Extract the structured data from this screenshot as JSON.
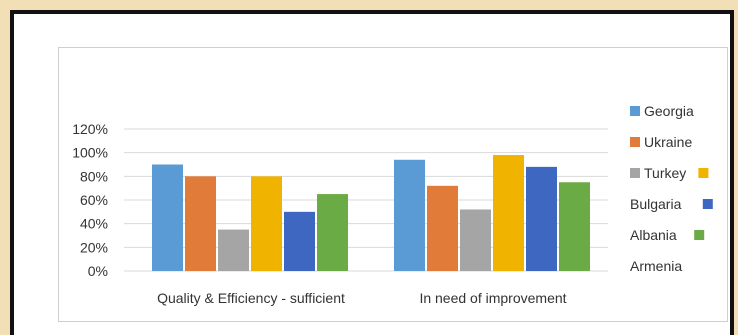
{
  "colors": {
    "background": "#f3dfb6",
    "frame": "#111111",
    "grid": "#d9d9d9"
  },
  "chart_data": {
    "type": "bar",
    "title": "",
    "xlabel": "",
    "ylabel": "",
    "categories": [
      "Quality & Efficiency - sufficient",
      "In need of improvement"
    ],
    "ylim": [
      0,
      1.2
    ],
    "yticks": [
      "0%",
      "20%",
      "40%",
      "60%",
      "80%",
      "100%",
      "120%"
    ],
    "grid": true,
    "legend_position": "right",
    "series": [
      {
        "name": "Georgia",
        "color": "#5b9bd5",
        "values": [
          0.9,
          0.94
        ]
      },
      {
        "name": "Ukraine",
        "color": "#e07b39",
        "values": [
          0.8,
          0.72
        ]
      },
      {
        "name": "Turkey",
        "color": "#a5a5a5",
        "values": [
          0.35,
          0.52
        ]
      },
      {
        "name": "Bulgaria",
        "color": "#f0b400",
        "values": [
          0.8,
          0.98
        ]
      },
      {
        "name": "Albania",
        "color": "#3e67c2",
        "values": [
          0.5,
          0.88
        ]
      },
      {
        "name": "Armenia",
        "color": "#6aab45",
        "values": [
          0.65,
          0.75
        ]
      }
    ],
    "legend_entries": [
      {
        "label": "Georgia",
        "swatch": "#5b9bd5",
        "swatch_side": "left"
      },
      {
        "label": "Ukraine",
        "swatch": "#e07b39",
        "swatch_side": "left"
      },
      {
        "label": "Turkey",
        "swatch": "#a5a5a5",
        "swatch_side": "left",
        "extra_swatch": "#f0b400"
      },
      {
        "label": "Bulgaria",
        "swatch": "#3e67c2",
        "swatch_side": "right"
      },
      {
        "label": "Albania",
        "swatch": "#6aab45",
        "swatch_side": "right"
      },
      {
        "label": "Armenia",
        "swatch": "",
        "swatch_side": "none"
      }
    ]
  }
}
